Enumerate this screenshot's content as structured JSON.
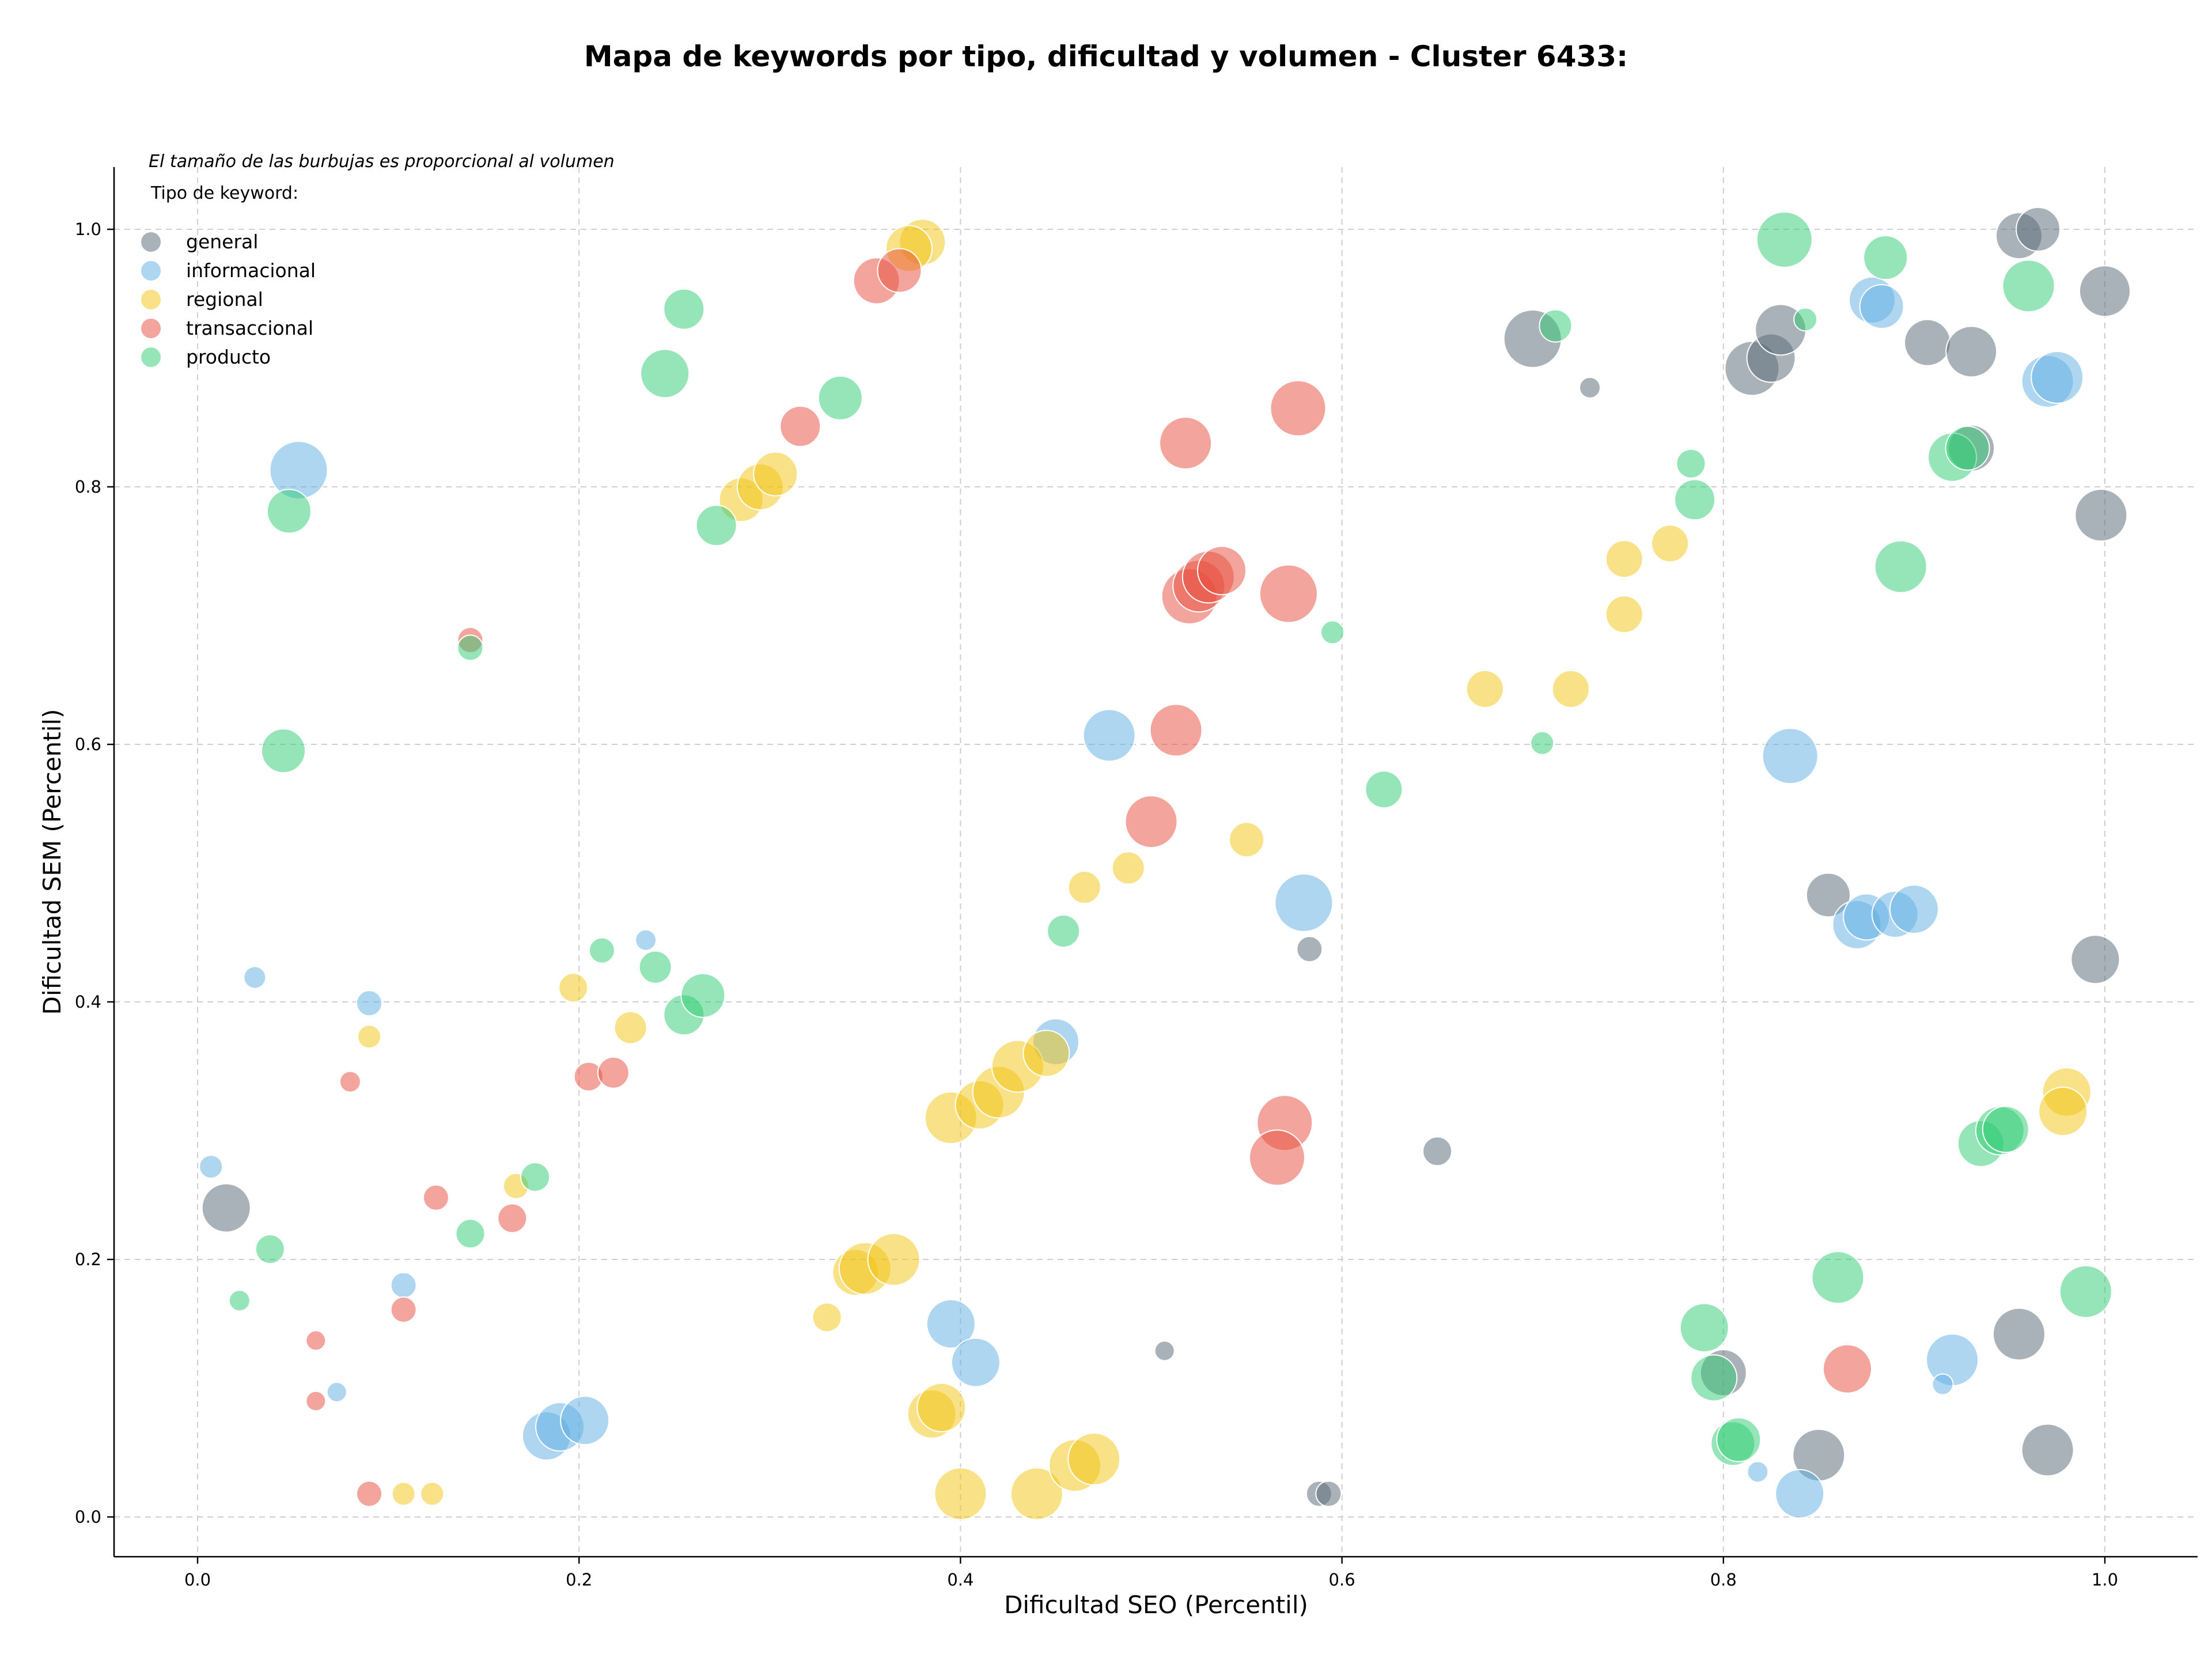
{
  "chart_data": {
    "type": "scatter",
    "title": "Mapa de keywords por tipo, dificultad y volumen - Cluster 6433:",
    "xlabel": "Dificultad SEO (Percentil)",
    "ylabel": "Dificultad SEM (Percentil)",
    "xlim": [
      -0.05,
      1.05
    ],
    "ylim": [
      -0.03,
      1.05
    ],
    "xticks": [
      "0.0",
      "0.2",
      "0.4",
      "0.6",
      "0.8",
      "1.0"
    ],
    "yticks": [
      "0.0",
      "0.2",
      "0.4",
      "0.6",
      "0.8",
      "1.0"
    ],
    "grid": true,
    "size_note": "El tamaño de las burbujas es proporcional al volumen",
    "legend_title": "Tipo de keyword:",
    "legend_position": "top-left",
    "series": [
      {
        "name": "general",
        "color": "#566573",
        "points": [
          [
            0.015,
            0.24,
            42
          ],
          [
            0.7,
            0.915,
            50
          ],
          [
            0.73,
            0.877,
            18
          ],
          [
            0.815,
            0.892,
            47
          ],
          [
            0.825,
            0.9,
            42
          ],
          [
            0.83,
            0.922,
            44
          ],
          [
            0.907,
            0.912,
            40
          ],
          [
            0.93,
            0.905,
            44
          ],
          [
            0.93,
            0.83,
            40
          ],
          [
            0.955,
            0.995,
            40
          ],
          [
            0.965,
            1.0,
            38
          ],
          [
            1.0,
            0.952,
            44
          ],
          [
            0.998,
            0.778,
            45
          ],
          [
            0.855,
            0.483,
            38
          ],
          [
            0.995,
            0.433,
            42
          ],
          [
            0.583,
            0.441,
            22
          ],
          [
            0.65,
            0.284,
            25
          ],
          [
            0.507,
            0.129,
            17
          ],
          [
            0.8,
            0.112,
            40
          ],
          [
            0.85,
            0.048,
            45
          ],
          [
            0.955,
            0.142,
            45
          ],
          [
            0.97,
            0.052,
            45
          ],
          [
            0.588,
            0.018,
            22
          ],
          [
            0.593,
            0.018,
            22
          ]
        ]
      },
      {
        "name": "informacional",
        "color": "#5dade2",
        "points": [
          [
            0.053,
            0.813,
            50
          ],
          [
            0.03,
            0.419,
            19
          ],
          [
            0.09,
            0.399,
            22
          ],
          [
            0.007,
            0.272,
            20
          ],
          [
            0.108,
            0.18,
            22
          ],
          [
            0.073,
            0.097,
            17
          ],
          [
            0.183,
            0.063,
            42
          ],
          [
            0.19,
            0.07,
            42
          ],
          [
            0.203,
            0.075,
            42
          ],
          [
            0.235,
            0.448,
            18
          ],
          [
            0.395,
            0.15,
            42
          ],
          [
            0.408,
            0.12,
            42
          ],
          [
            0.45,
            0.369,
            40
          ],
          [
            0.478,
            0.607,
            45
          ],
          [
            0.58,
            0.477,
            50
          ],
          [
            0.835,
            0.591,
            48
          ],
          [
            0.87,
            0.46,
            42
          ],
          [
            0.875,
            0.466,
            40
          ],
          [
            0.89,
            0.468,
            40
          ],
          [
            0.9,
            0.472,
            42
          ],
          [
            0.878,
            0.945,
            40
          ],
          [
            0.883,
            0.94,
            38
          ],
          [
            0.97,
            0.882,
            45
          ],
          [
            0.975,
            0.885,
            45
          ],
          [
            0.92,
            0.122,
            45
          ],
          [
            0.915,
            0.103,
            18
          ],
          [
            0.818,
            0.035,
            18
          ],
          [
            0.84,
            0.018,
            42
          ]
        ]
      },
      {
        "name": "regional",
        "color": "#f1c40f",
        "points": [
          [
            0.38,
            0.99,
            40
          ],
          [
            0.373,
            0.985,
            40
          ],
          [
            0.285,
            0.79,
            38
          ],
          [
            0.295,
            0.8,
            40
          ],
          [
            0.303,
            0.81,
            38
          ],
          [
            0.197,
            0.411,
            25
          ],
          [
            0.227,
            0.38,
            28
          ],
          [
            0.09,
            0.373,
            20
          ],
          [
            0.167,
            0.257,
            22
          ],
          [
            0.108,
            0.018,
            20
          ],
          [
            0.123,
            0.018,
            20
          ],
          [
            0.33,
            0.155,
            25
          ],
          [
            0.345,
            0.19,
            40
          ],
          [
            0.35,
            0.193,
            45
          ],
          [
            0.365,
            0.2,
            45
          ],
          [
            0.385,
            0.08,
            42
          ],
          [
            0.39,
            0.085,
            42
          ],
          [
            0.395,
            0.31,
            45
          ],
          [
            0.41,
            0.32,
            42
          ],
          [
            0.42,
            0.33,
            45
          ],
          [
            0.43,
            0.35,
            45
          ],
          [
            0.445,
            0.36,
            40
          ],
          [
            0.465,
            0.489,
            28
          ],
          [
            0.488,
            0.504,
            28
          ],
          [
            0.55,
            0.526,
            30
          ],
          [
            0.4,
            0.018,
            45
          ],
          [
            0.44,
            0.018,
            45
          ],
          [
            0.46,
            0.04,
            45
          ],
          [
            0.47,
            0.045,
            45
          ],
          [
            0.675,
            0.643,
            32
          ],
          [
            0.72,
            0.643,
            32
          ],
          [
            0.748,
            0.744,
            32
          ],
          [
            0.748,
            0.701,
            32
          ],
          [
            0.772,
            0.756,
            32
          ],
          [
            0.98,
            0.33,
            42
          ],
          [
            0.978,
            0.315,
            42
          ]
        ]
      },
      {
        "name": "transaccional",
        "color": "#e74c3c",
        "points": [
          [
            0.356,
            0.96,
            40
          ],
          [
            0.368,
            0.968,
            38
          ],
          [
            0.316,
            0.847,
            35
          ],
          [
            0.143,
            0.681,
            22
          ],
          [
            0.08,
            0.338,
            18
          ],
          [
            0.125,
            0.248,
            22
          ],
          [
            0.165,
            0.232,
            25
          ],
          [
            0.108,
            0.161,
            22
          ],
          [
            0.062,
            0.137,
            17
          ],
          [
            0.062,
            0.09,
            17
          ],
          [
            0.09,
            0.018,
            22
          ],
          [
            0.205,
            0.342,
            25
          ],
          [
            0.218,
            0.345,
            27
          ],
          [
            0.518,
            0.834,
            45
          ],
          [
            0.577,
            0.861,
            48
          ],
          [
            0.52,
            0.715,
            48
          ],
          [
            0.525,
            0.723,
            45
          ],
          [
            0.53,
            0.73,
            45
          ],
          [
            0.537,
            0.735,
            42
          ],
          [
            0.572,
            0.717,
            50
          ],
          [
            0.513,
            0.611,
            45
          ],
          [
            0.5,
            0.54,
            45
          ],
          [
            0.57,
            0.306,
            48
          ],
          [
            0.566,
            0.279,
            48
          ],
          [
            0.865,
            0.115,
            42
          ]
        ]
      },
      {
        "name": "producto",
        "color": "#2ecc71",
        "points": [
          [
            0.048,
            0.781,
            38
          ],
          [
            0.045,
            0.595,
            38
          ],
          [
            0.143,
            0.675,
            22
          ],
          [
            0.038,
            0.208,
            25
          ],
          [
            0.022,
            0.168,
            18
          ],
          [
            0.143,
            0.22,
            25
          ],
          [
            0.177,
            0.264,
            25
          ],
          [
            0.212,
            0.44,
            22
          ],
          [
            0.24,
            0.427,
            28
          ],
          [
            0.255,
            0.39,
            35
          ],
          [
            0.265,
            0.405,
            38
          ],
          [
            0.245,
            0.888,
            42
          ],
          [
            0.255,
            0.938,
            35
          ],
          [
            0.337,
            0.869,
            38
          ],
          [
            0.272,
            0.77,
            35
          ],
          [
            0.454,
            0.455,
            28
          ],
          [
            0.595,
            0.687,
            20
          ],
          [
            0.622,
            0.565,
            32
          ],
          [
            0.705,
            0.601,
            20
          ],
          [
            0.712,
            0.925,
            28
          ],
          [
            0.832,
            0.992,
            48
          ],
          [
            0.843,
            0.93,
            20
          ],
          [
            0.885,
            0.978,
            38
          ],
          [
            0.96,
            0.956,
            45
          ],
          [
            0.783,
            0.818,
            25
          ],
          [
            0.785,
            0.79,
            35
          ],
          [
            0.893,
            0.738,
            45
          ],
          [
            0.92,
            0.823,
            42
          ],
          [
            0.928,
            0.83,
            38
          ],
          [
            0.935,
            0.29,
            40
          ],
          [
            0.945,
            0.3,
            42
          ],
          [
            0.948,
            0.301,
            40
          ],
          [
            0.86,
            0.186,
            45
          ],
          [
            0.99,
            0.175,
            45
          ],
          [
            0.79,
            0.147,
            42
          ],
          [
            0.795,
            0.108,
            40
          ],
          [
            0.805,
            0.057,
            38
          ],
          [
            0.808,
            0.06,
            38
          ]
        ]
      }
    ]
  }
}
